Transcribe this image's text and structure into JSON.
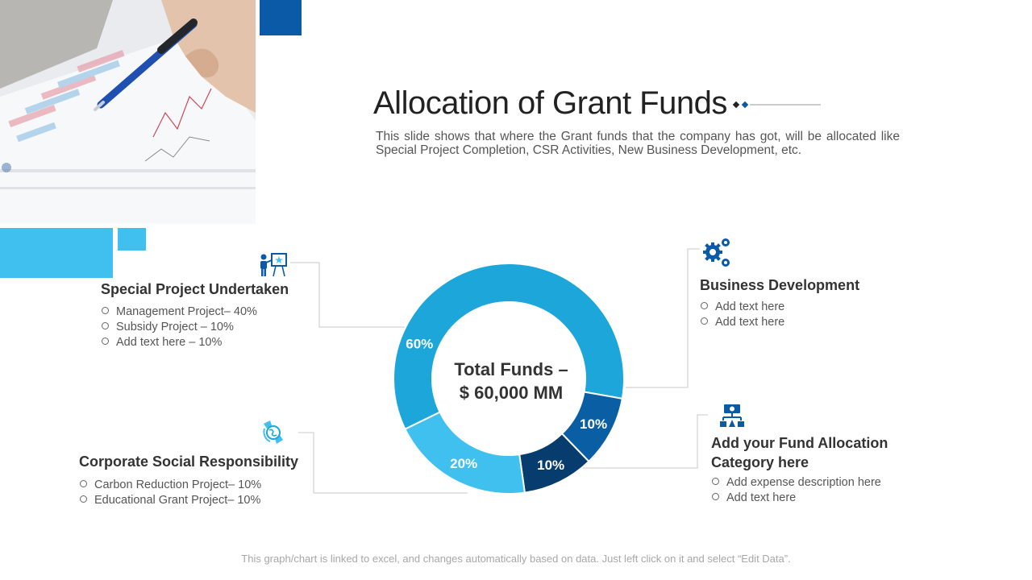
{
  "slide": {
    "title": "Allocation of Grant Funds",
    "subtitle": "This slide shows that where the Grant funds that the company has got, will be allocated like Special Project Completion, CSR Activities, New Business Development, etc.",
    "footer": "This graph/chart is linked to excel, and changes automatically based on data. Just left click on it and select “Edit Data”."
  },
  "chart_data": {
    "type": "pie",
    "variant": "donut",
    "center_label_line1": "Total Funds –",
    "center_label_line2": "$ 60,000 MM",
    "slices": [
      {
        "value": 60,
        "label": "60%",
        "color": "#1ca6d9"
      },
      {
        "value": 10,
        "label": "10%",
        "color": "#0a5fa4"
      },
      {
        "value": 10,
        "label": "10%",
        "color": "#063d6e"
      },
      {
        "value": 20,
        "label": "20%",
        "color": "#3fc0ef"
      }
    ]
  },
  "categories": {
    "special_project": {
      "heading": "Special Project Undertaken",
      "items": [
        "Management Project– 40%",
        "Subsidy Project – 10%",
        "Add text here – 10%"
      ],
      "icon": "presentation-board-icon"
    },
    "csr": {
      "heading": "Corporate Social Responsibility",
      "items": [
        "Carbon Reduction Project– 10%",
        "Educational Grant Project– 10%"
      ],
      "icon": "hands-globe-icon"
    },
    "business_dev": {
      "heading": "Business Development",
      "items": [
        "Add text here",
        "Add text here"
      ],
      "icon": "gears-icon"
    },
    "fund_alloc": {
      "heading_line1": "Add your Fund Allocation",
      "heading_line2": "Category here",
      "items": [
        "Add expense description here",
        "Add text here"
      ],
      "icon": "money-hierarchy-icon"
    }
  },
  "colors": {
    "dark_blue": "#0a5aa8",
    "light_blue": "#3fc0ef",
    "connector": "#c9c9c9"
  }
}
